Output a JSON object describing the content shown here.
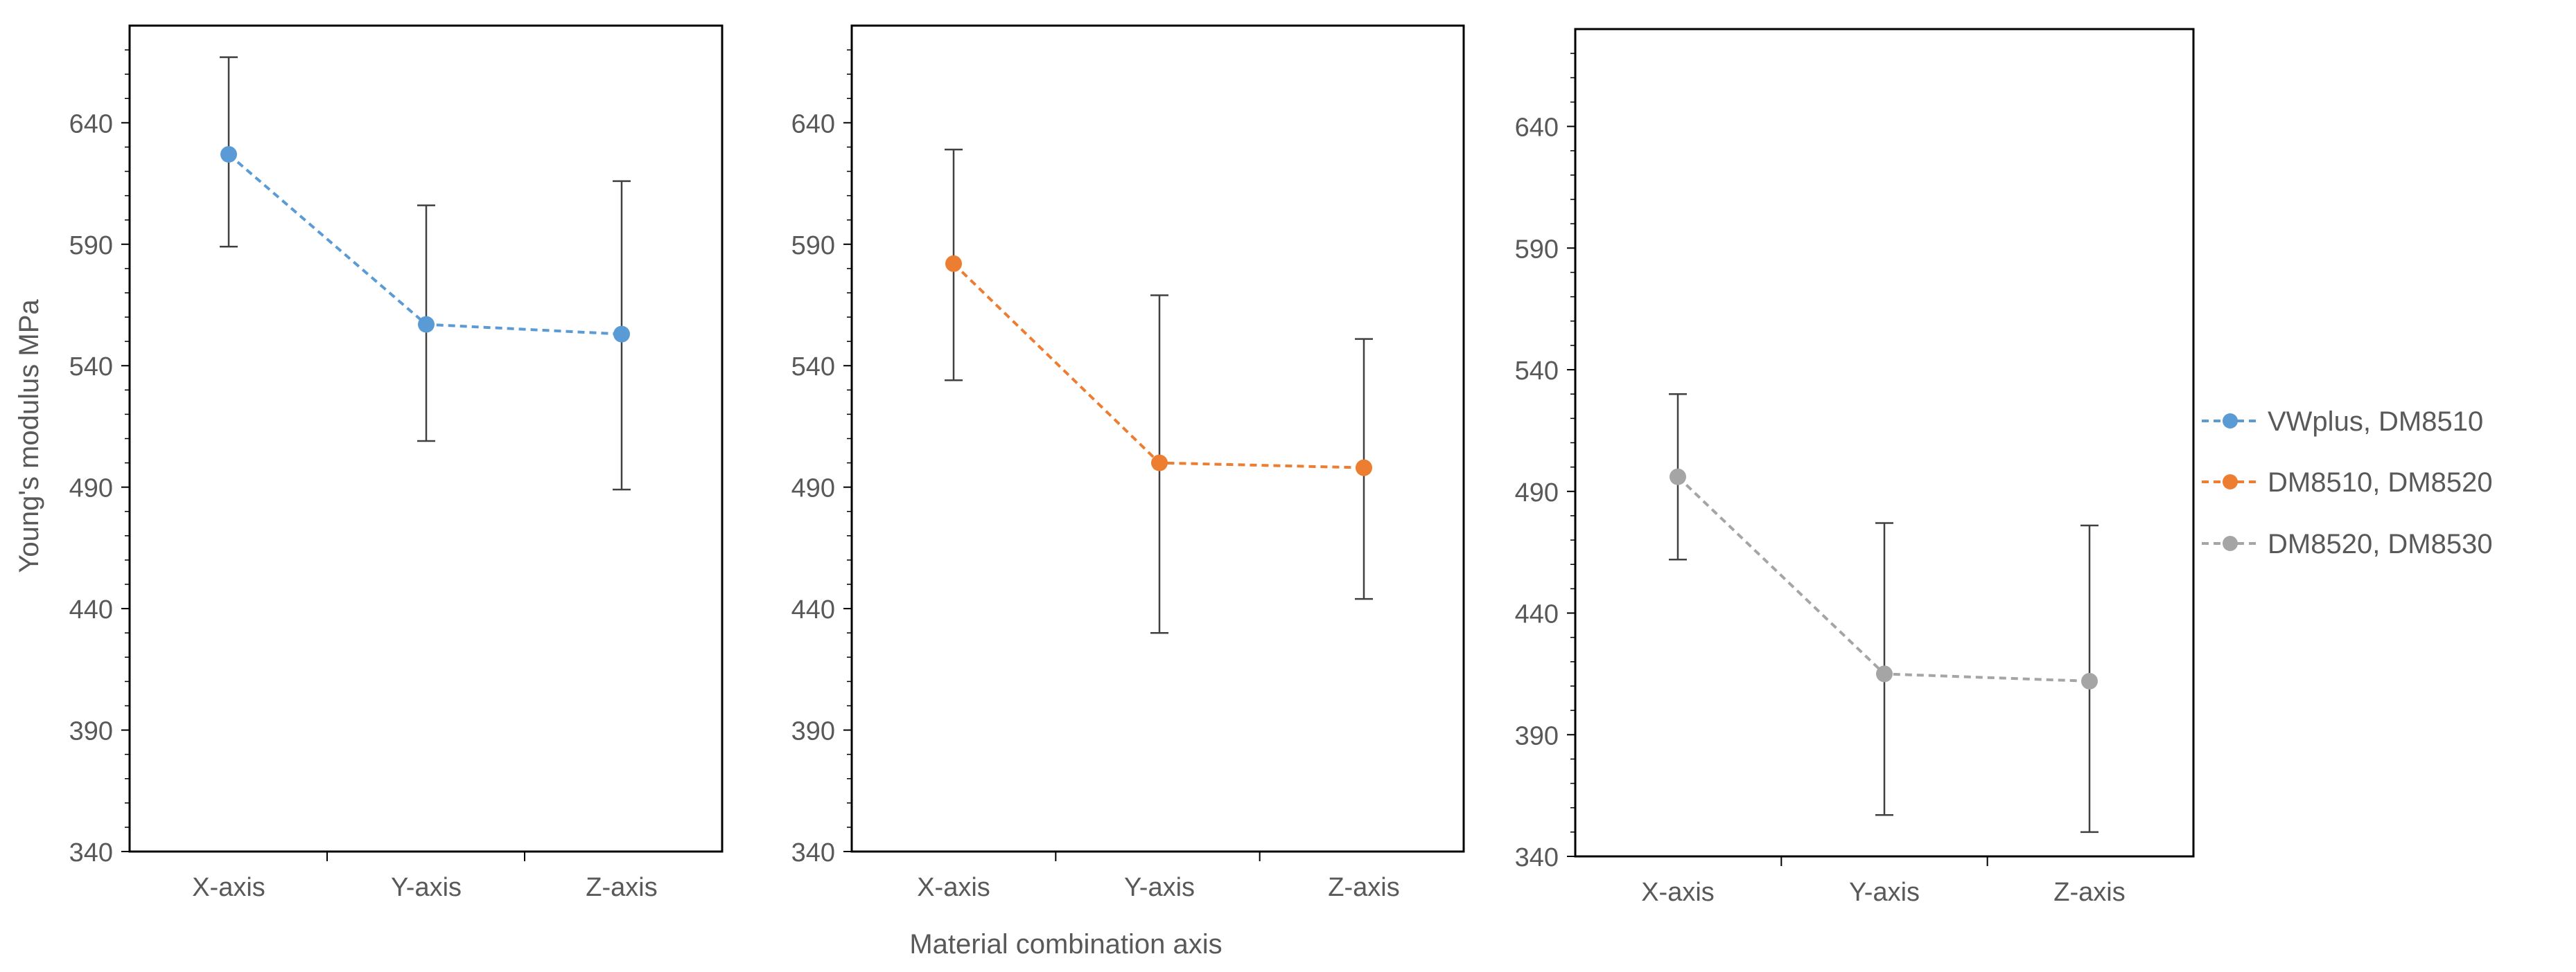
{
  "figure": {
    "y_axis_label": "Young's modulus MPa",
    "x_axis_label": "Material combination axis"
  },
  "chart_data": [
    {
      "type": "line",
      "panel": "left",
      "title": "",
      "xlabel": "",
      "ylabel": "Young's modulus MPa",
      "categories": [
        "X-axis",
        "Y-axis",
        "Z-axis"
      ],
      "ylim": [
        340,
        680
      ],
      "yticks": [
        340,
        390,
        440,
        490,
        540,
        590,
        640
      ],
      "series": [
        {
          "name": "VWplus, DM8510",
          "color": "#5B9BD5",
          "values": [
            627,
            557,
            553
          ],
          "error_low": [
            589,
            509,
            489
          ],
          "error_high": [
            667,
            606,
            616
          ]
        }
      ]
    },
    {
      "type": "line",
      "panel": "middle",
      "title": "",
      "xlabel": "Material combination axis",
      "ylabel": "",
      "categories": [
        "X-axis",
        "Y-axis",
        "Z-axis"
      ],
      "ylim": [
        340,
        680
      ],
      "yticks": [
        340,
        390,
        440,
        490,
        540,
        590,
        640
      ],
      "series": [
        {
          "name": "DM8510, DM8520",
          "color": "#ED7D31",
          "values": [
            582,
            500,
            498
          ],
          "error_low": [
            534,
            430,
            444
          ],
          "error_high": [
            629,
            569,
            551
          ]
        }
      ]
    },
    {
      "type": "line",
      "panel": "right",
      "title": "",
      "xlabel": "",
      "ylabel": "",
      "categories": [
        "X-axis",
        "Y-axis",
        "Z-axis"
      ],
      "ylim": [
        340,
        680
      ],
      "yticks": [
        340,
        390,
        440,
        490,
        540,
        590,
        640
      ],
      "series": [
        {
          "name": "DM8520, DM8530",
          "color": "#A5A5A5",
          "values": [
            496,
            415,
            412
          ],
          "error_low": [
            462,
            357,
            350
          ],
          "error_high": [
            530,
            477,
            476
          ]
        }
      ]
    }
  ],
  "legend": {
    "placement": "right",
    "entries": [
      {
        "label": "VWplus, DM8510",
        "color": "#5B9BD5"
      },
      {
        "label": "DM8510, DM8520",
        "color": "#ED7D31"
      },
      {
        "label": "DM8520, DM8530",
        "color": "#A5A5A5"
      }
    ]
  }
}
